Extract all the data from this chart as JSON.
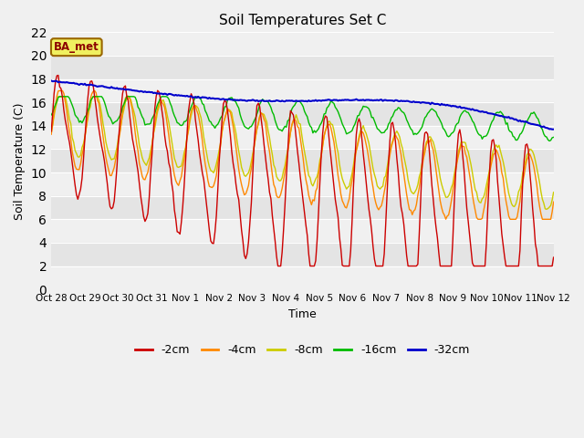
{
  "title": "Soil Temperatures Set C",
  "xlabel": "Time",
  "ylabel": "Soil Temperature (C)",
  "ylim": [
    0,
    22
  ],
  "yticks": [
    0,
    2,
    4,
    6,
    8,
    10,
    12,
    14,
    16,
    18,
    20,
    22
  ],
  "xlim": [
    0,
    15
  ],
  "fig_bg": "#f0f0f0",
  "plot_bg": "#e8e8e8",
  "legend_label": "BA_met",
  "series_colors": {
    "-2cm": "#cc0000",
    "-4cm": "#ff8800",
    "-8cm": "#cccc00",
    "-16cm": "#00bb00",
    "-32cm": "#0000cc"
  },
  "xtick_labels": [
    "Oct 28",
    "Oct 29",
    "Oct 30",
    "Oct 31",
    "Nov 1",
    "Nov 2",
    "Nov 3",
    "Nov 4",
    "Nov 5",
    "Nov 6",
    "Nov 7",
    "Nov 8",
    "Nov 9",
    "Nov 10",
    "Nov 11",
    "Nov 12"
  ],
  "horizontal_bands": [
    [
      20,
      22,
      "#f0f0f0"
    ],
    [
      18,
      20,
      "#e4e4e4"
    ],
    [
      16,
      18,
      "#f0f0f0"
    ],
    [
      14,
      16,
      "#e4e4e4"
    ],
    [
      12,
      14,
      "#f0f0f0"
    ],
    [
      10,
      12,
      "#e4e4e4"
    ],
    [
      8,
      10,
      "#f0f0f0"
    ],
    [
      6,
      8,
      "#e4e4e4"
    ],
    [
      4,
      6,
      "#f0f0f0"
    ],
    [
      2,
      4,
      "#e4e4e4"
    ],
    [
      0,
      2,
      "#f0f0f0"
    ]
  ]
}
